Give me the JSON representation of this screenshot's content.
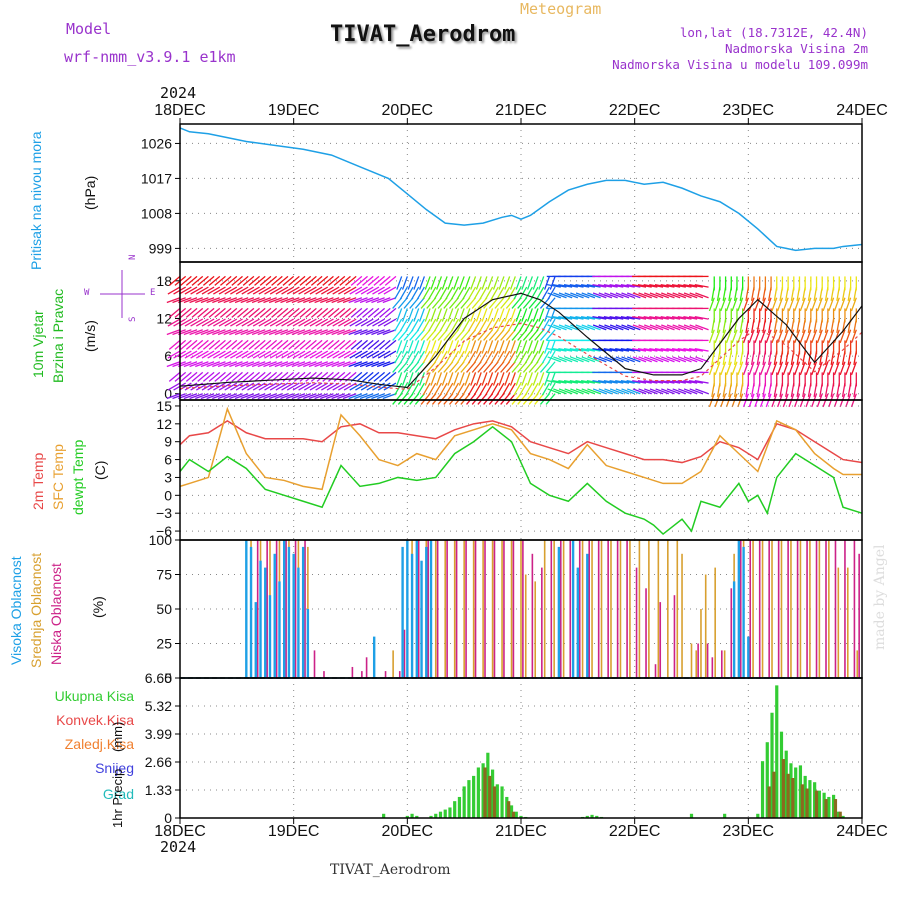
{
  "header": {
    "model_label": "Model",
    "model_name": "wrf-nmm_v3.9.1 e1km",
    "title": "TIVAT_Aerodrom",
    "meteogram_label": "Meteogram",
    "lonlat": "lon,lat (18.7312E, 42.4N)",
    "elevation": "Nadmorska Visina 2m",
    "model_elevation": "Nadmorska Visina u modelu 109.099m",
    "year_top": "2024",
    "year_bottom": "2024",
    "footer_station": "TIVAT_Aerodrom",
    "watermark": "made by Angel"
  },
  "colors": {
    "pressure": "#1ea0e6",
    "wind_label": "#22bb22",
    "t2m": "#e84848",
    "tsfc": "#e8a030",
    "dewpoint": "#22cc22",
    "high_cloud": "#1ea0e6",
    "mid_cloud": "#d8a030",
    "low_cloud": "#cc2288",
    "snow": "#4040dd",
    "grad": "#22bbbb",
    "precip_total": "#33cc33",
    "precip_conv": "#e84848",
    "precip_strat": "#f08030",
    "precip_bar2": "#8a6a20",
    "label_purple": "#9933cc",
    "label_meteo": "#e8b860"
  },
  "chart_data": {
    "x_tick_labels": [
      "18DEC",
      "19DEC",
      "20DEC",
      "21DEC",
      "22DEC",
      "23DEC",
      "24DEC"
    ],
    "x_range_hours": [
      0,
      144
    ],
    "pressure": {
      "type": "line",
      "ylabel": "Pritisak na nivou mora",
      "unit": "(hPa)",
      "ticks": [
        "1026",
        "1017",
        "1008",
        "999"
      ],
      "ylim": [
        995.5,
        1031
      ],
      "hours": [
        0,
        2,
        6,
        10,
        14,
        20,
        26,
        32,
        38,
        44,
        48,
        52,
        56,
        60,
        64,
        68,
        70,
        72,
        74,
        78,
        82,
        86,
        90,
        94,
        98,
        102,
        106,
        110,
        114,
        118,
        122,
        126,
        128,
        130,
        134,
        138,
        140,
        144
      ],
      "values": [
        1030,
        1029,
        1028.5,
        1027.5,
        1026.5,
        1025.5,
        1024.5,
        1023,
        1020,
        1017,
        1013,
        1009,
        1005.5,
        1005,
        1005.5,
        1007,
        1007.5,
        1006.5,
        1007.5,
        1011,
        1014,
        1015.5,
        1016.5,
        1016.5,
        1015.5,
        1016,
        1014.5,
        1012.5,
        1011,
        1008,
        1004,
        999.5,
        999,
        998.5,
        999,
        999,
        999.5,
        1000
      ]
    },
    "wind": {
      "type": "barbs",
      "ylabel_1": "10m Vjetar",
      "ylabel_2": "Brzina i Pravac",
      "unit": "(m/s)",
      "ticks": [
        "18",
        "12",
        "6",
        "0"
      ],
      "ylim": [
        -1,
        21
      ],
      "compass": {
        "n": "N",
        "w": "W",
        "e": "E",
        "s": "S"
      },
      "speed_hours": [
        0,
        10,
        20,
        28,
        36,
        42,
        48,
        54,
        60,
        66,
        72,
        76,
        80,
        86,
        94,
        100,
        106,
        110,
        114,
        118,
        122,
        128,
        134,
        140,
        144
      ],
      "speed_values": [
        1.2,
        1.8,
        2.2,
        2.5,
        2.2,
        1.5,
        1.0,
        6,
        12,
        15,
        16,
        15,
        13,
        9,
        4,
        3,
        3,
        4,
        8,
        12,
        15,
        11,
        5,
        10,
        14
      ]
    },
    "temperature": {
      "type": "line",
      "ylabel_1": "2m Temp",
      "ylabel_2": "SFC Temp",
      "ylabel_3": "dewpt Temp",
      "unit": "(C)",
      "ticks": [
        "15",
        "12",
        "9",
        "6",
        "3",
        "0",
        "−3",
        "−6"
      ],
      "ylim": [
        -7.5,
        16
      ],
      "series": [
        {
          "name": "2m Temp",
          "hours": [
            0,
            2,
            6,
            10,
            14,
            18,
            22,
            26,
            30,
            34,
            38,
            42,
            46,
            50,
            54,
            58,
            62,
            66,
            70,
            74,
            78,
            82,
            86,
            90,
            94,
            98,
            102,
            106,
            110,
            114,
            118,
            122,
            126,
            130,
            134,
            138,
            140,
            144
          ],
          "values": [
            8.5,
            10,
            10.5,
            12.5,
            10.5,
            9.5,
            9.5,
            9.5,
            9,
            11.5,
            12,
            10.5,
            10.5,
            10,
            9.5,
            11,
            12,
            12.5,
            11.5,
            9,
            8,
            7,
            9,
            8,
            7,
            6,
            6,
            5.5,
            6.5,
            9,
            8,
            6,
            12,
            11,
            9,
            7,
            6,
            5.5
          ]
        },
        {
          "name": "SFC Temp",
          "hours": [
            0,
            2,
            6,
            10,
            14,
            18,
            22,
            26,
            30,
            34,
            38,
            42,
            46,
            50,
            54,
            58,
            62,
            66,
            70,
            74,
            78,
            82,
            86,
            90,
            94,
            98,
            102,
            106,
            110,
            114,
            118,
            122,
            126,
            130,
            134,
            138,
            140,
            144
          ],
          "values": [
            1.5,
            2,
            3,
            14.5,
            7,
            3,
            2.5,
            1.5,
            1,
            13.5,
            10,
            6,
            5,
            7,
            6,
            10,
            11,
            12,
            11,
            7,
            6,
            4.5,
            8.5,
            5,
            4,
            3,
            2,
            2,
            4,
            10,
            7,
            4,
            12.5,
            11,
            7,
            4.5,
            3.5,
            3.5
          ]
        },
        {
          "name": "dewpt Temp",
          "hours": [
            0,
            2,
            6,
            10,
            14,
            18,
            22,
            26,
            30,
            34,
            38,
            42,
            46,
            50,
            54,
            58,
            62,
            66,
            70,
            74,
            78,
            82,
            86,
            90,
            94,
            98,
            100,
            102,
            106,
            108,
            110,
            114,
            118,
            120,
            122,
            124,
            126,
            130,
            134,
            138,
            140,
            144
          ],
          "values": [
            4,
            6,
            4,
            6.5,
            4.5,
            1,
            0,
            -1,
            -2,
            5,
            1.5,
            2,
            3,
            2.5,
            3,
            7,
            9,
            11.5,
            9,
            2,
            0,
            -1,
            2,
            -1,
            -3,
            -4,
            -5,
            -6.5,
            -4,
            -6,
            -1,
            -2,
            2,
            -1,
            0,
            -3,
            3,
            7,
            5,
            3,
            -2,
            -3
          ]
        }
      ]
    },
    "clouds": {
      "type": "bar",
      "ylabel_1": "Visoka Oblacnost",
      "ylabel_2": "Srednja Oblacnost",
      "ylabel_3": "Niska Oblacnost",
      "unit": "(%)",
      "ticks": [
        "100",
        "75",
        "50",
        "25",
        "0"
      ],
      "ylim": [
        0,
        100
      ],
      "high": [
        [
          14,
          100
        ],
        [
          15,
          95
        ],
        [
          16,
          55
        ],
        [
          17,
          85
        ],
        [
          18,
          80
        ],
        [
          19,
          60
        ],
        [
          20,
          90
        ],
        [
          21,
          70
        ],
        [
          22,
          100
        ],
        [
          23,
          95
        ],
        [
          24,
          90
        ],
        [
          25,
          80
        ],
        [
          26,
          95
        ],
        [
          27,
          50
        ],
        [
          41,
          30
        ],
        [
          47,
          95
        ],
        [
          48,
          100
        ],
        [
          49,
          90
        ],
        [
          50,
          100
        ],
        [
          51,
          85
        ],
        [
          52,
          95
        ],
        [
          53,
          100
        ],
        [
          80,
          95
        ],
        [
          83,
          100
        ],
        [
          84,
          80
        ],
        [
          86,
          90
        ],
        [
          117,
          70
        ],
        [
          118,
          100
        ],
        [
          119,
          95
        ],
        [
          120,
          30
        ]
      ],
      "mid": [
        [
          15,
          100
        ],
        [
          17,
          100
        ],
        [
          19,
          100
        ],
        [
          21,
          100
        ],
        [
          23,
          100
        ],
        [
          25,
          100
        ],
        [
          27,
          95
        ],
        [
          45,
          20
        ],
        [
          49,
          100
        ],
        [
          52,
          100
        ],
        [
          54,
          100
        ],
        [
          56,
          100
        ],
        [
          58,
          100
        ],
        [
          60,
          100
        ],
        [
          62,
          100
        ],
        [
          64,
          100
        ],
        [
          66,
          100
        ],
        [
          68,
          100
        ],
        [
          70,
          100
        ],
        [
          72,
          100
        ],
        [
          73,
          75
        ],
        [
          75,
          70
        ],
        [
          77,
          100
        ],
        [
          79,
          100
        ],
        [
          81,
          100
        ],
        [
          83,
          100
        ],
        [
          85,
          100
        ],
        [
          87,
          100
        ],
        [
          89,
          100
        ],
        [
          91,
          100
        ],
        [
          93,
          100
        ],
        [
          95,
          100
        ],
        [
          97,
          100
        ],
        [
          99,
          100
        ],
        [
          101,
          100
        ],
        [
          103,
          100
        ],
        [
          105,
          100
        ],
        [
          106,
          90
        ],
        [
          108,
          25
        ],
        [
          109,
          20
        ],
        [
          110,
          50
        ],
        [
          111,
          75
        ],
        [
          113,
          80
        ],
        [
          115,
          20
        ],
        [
          117,
          90
        ],
        [
          119,
          100
        ],
        [
          121,
          100
        ],
        [
          123,
          100
        ],
        [
          125,
          100
        ],
        [
          127,
          100
        ],
        [
          129,
          100
        ],
        [
          131,
          100
        ],
        [
          133,
          100
        ],
        [
          135,
          100
        ],
        [
          137,
          100
        ],
        [
          139,
          80
        ],
        [
          141,
          80
        ],
        [
          143,
          20
        ]
      ],
      "low": [
        [
          16,
          100
        ],
        [
          18,
          100
        ],
        [
          20,
          100
        ],
        [
          22,
          100
        ],
        [
          24,
          100
        ],
        [
          26,
          100
        ],
        [
          28,
          20
        ],
        [
          30,
          5
        ],
        [
          36,
          8
        ],
        [
          38,
          5
        ],
        [
          39,
          15
        ],
        [
          43,
          5
        ],
        [
          46,
          5
        ],
        [
          47,
          35
        ],
        [
          50,
          100
        ],
        [
          52,
          100
        ],
        [
          54,
          100
        ],
        [
          56,
          100
        ],
        [
          58,
          100
        ],
        [
          60,
          100
        ],
        [
          62,
          100
        ],
        [
          64,
          100
        ],
        [
          66,
          100
        ],
        [
          68,
          100
        ],
        [
          70,
          100
        ],
        [
          72,
          100
        ],
        [
          74,
          90
        ],
        [
          76,
          80
        ],
        [
          78,
          100
        ],
        [
          80,
          100
        ],
        [
          82,
          100
        ],
        [
          84,
          100
        ],
        [
          86,
          100
        ],
        [
          88,
          100
        ],
        [
          90,
          100
        ],
        [
          92,
          100
        ],
        [
          94,
          100
        ],
        [
          96,
          80
        ],
        [
          98,
          65
        ],
        [
          100,
          10
        ],
        [
          101,
          55
        ],
        [
          104,
          60
        ],
        [
          109,
          25
        ],
        [
          111,
          25
        ],
        [
          112,
          15
        ],
        [
          114,
          20
        ],
        [
          116,
          65
        ],
        [
          118,
          100
        ],
        [
          120,
          100
        ],
        [
          122,
          100
        ],
        [
          124,
          100
        ],
        [
          126,
          100
        ],
        [
          128,
          100
        ],
        [
          130,
          100
        ],
        [
          132,
          100
        ],
        [
          134,
          100
        ],
        [
          136,
          100
        ],
        [
          138,
          100
        ],
        [
          140,
          100
        ],
        [
          142,
          100
        ],
        [
          143,
          90
        ]
      ]
    },
    "precipitation": {
      "type": "bar",
      "ylabel": "1hr Precip",
      "unit": "(mm)",
      "ticks": [
        "6.65",
        "5.32",
        "3.99",
        "2.66",
        "1.33",
        "0"
      ],
      "ylim": [
        0,
        6.65
      ],
      "legend": [
        "Ukupna Kisa",
        "Konvek.Kisa",
        "Zaledj.Kisa",
        "Snijeg",
        "Grad"
      ],
      "total": [
        [
          43,
          0.2
        ],
        [
          48,
          0.1
        ],
        [
          49,
          0.2
        ],
        [
          50,
          0.1
        ],
        [
          53,
          0.1
        ],
        [
          54,
          0.2
        ],
        [
          55,
          0.3
        ],
        [
          56,
          0.4
        ],
        [
          57,
          0.5
        ],
        [
          58,
          0.8
        ],
        [
          59,
          1.0
        ],
        [
          60,
          1.5
        ],
        [
          61,
          1.8
        ],
        [
          62,
          2.0
        ],
        [
          63,
          2.4
        ],
        [
          64,
          2.6
        ],
        [
          65,
          3.1
        ],
        [
          66,
          2.3
        ],
        [
          67,
          1.6
        ],
        [
          68,
          1.5
        ],
        [
          69,
          1.0
        ],
        [
          70,
          0.6
        ],
        [
          71,
          0.3
        ],
        [
          72,
          0.1
        ],
        [
          73,
          0.05
        ],
        [
          85,
          0.05
        ],
        [
          86,
          0.1
        ],
        [
          87,
          0.15
        ],
        [
          88,
          0.1
        ],
        [
          89,
          0.05
        ],
        [
          108,
          0.2
        ],
        [
          115,
          0.2
        ],
        [
          122,
          0.2
        ],
        [
          123,
          2.7
        ],
        [
          124,
          3.6
        ],
        [
          125,
          5.0
        ],
        [
          126,
          6.3
        ],
        [
          127,
          4.1
        ],
        [
          128,
          3.2
        ],
        [
          129,
          2.6
        ],
        [
          130,
          2.4
        ],
        [
          131,
          2.5
        ],
        [
          132,
          2.0
        ],
        [
          133,
          1.8
        ],
        [
          134,
          1.7
        ],
        [
          135,
          1.3
        ],
        [
          136,
          1.2
        ],
        [
          137,
          1.0
        ],
        [
          138,
          1.1
        ],
        [
          139,
          0.3
        ],
        [
          140,
          0.1
        ]
      ],
      "conv": [
        [
          64,
          2.4
        ],
        [
          65,
          2.0
        ],
        [
          66,
          1.5
        ],
        [
          69,
          0.8
        ],
        [
          70,
          0.3
        ],
        [
          124,
          1.5
        ],
        [
          125,
          2.2
        ],
        [
          127,
          2.8
        ],
        [
          128,
          2.1
        ],
        [
          129,
          1.9
        ],
        [
          131,
          1.6
        ],
        [
          132,
          1.4
        ],
        [
          134,
          1.3
        ],
        [
          136,
          0.9
        ],
        [
          138,
          0.9
        ],
        [
          139,
          0.3
        ]
      ]
    }
  }
}
